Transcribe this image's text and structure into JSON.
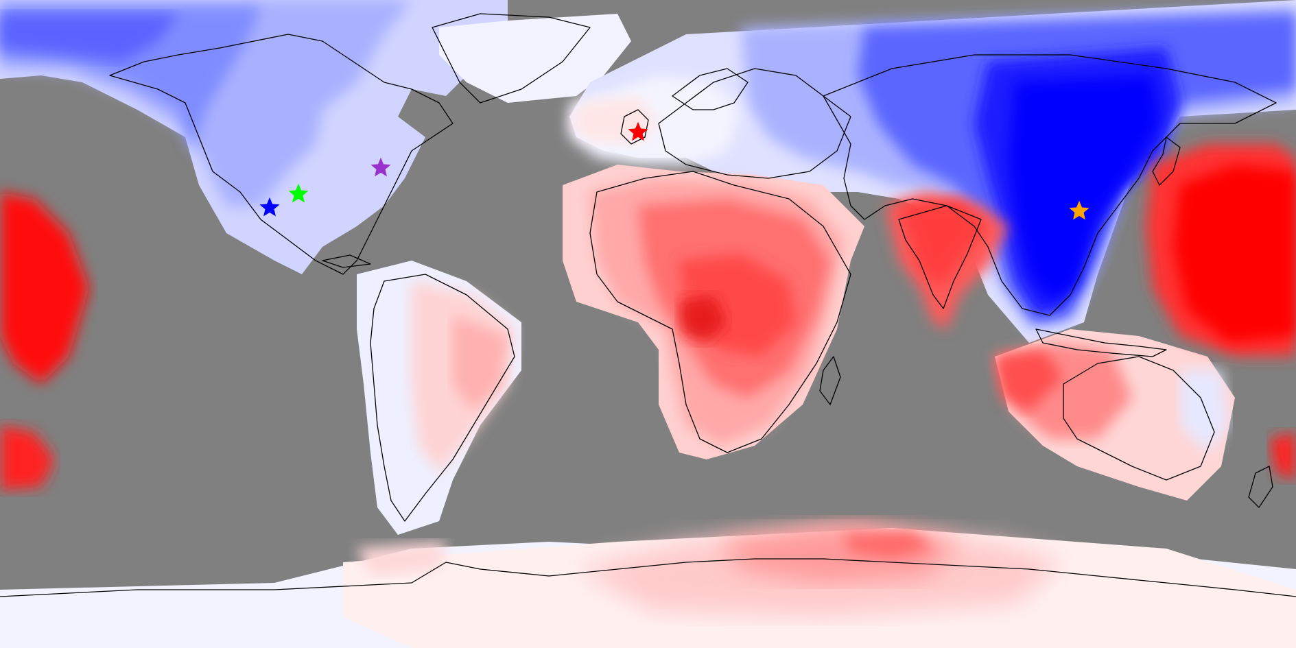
{
  "map": {
    "projection": "equirectangular",
    "no_data_color": "#808080",
    "scale_colors": {
      "strong_negative": "#0000ff",
      "neutral": "#ffffff",
      "strong_positive": "#ff0000"
    },
    "coastline_color": "#000000"
  },
  "markers": [
    {
      "name": "star-marker-london",
      "color": "#ff0000"
    },
    {
      "name": "star-marker-east-us",
      "color": "#9932cc"
    },
    {
      "name": "star-marker-central-us-green",
      "color": "#00ff00"
    },
    {
      "name": "star-marker-central-us-blue",
      "color": "#0000ff"
    },
    {
      "name": "star-marker-east-asia",
      "color": "#ffa500"
    }
  ]
}
